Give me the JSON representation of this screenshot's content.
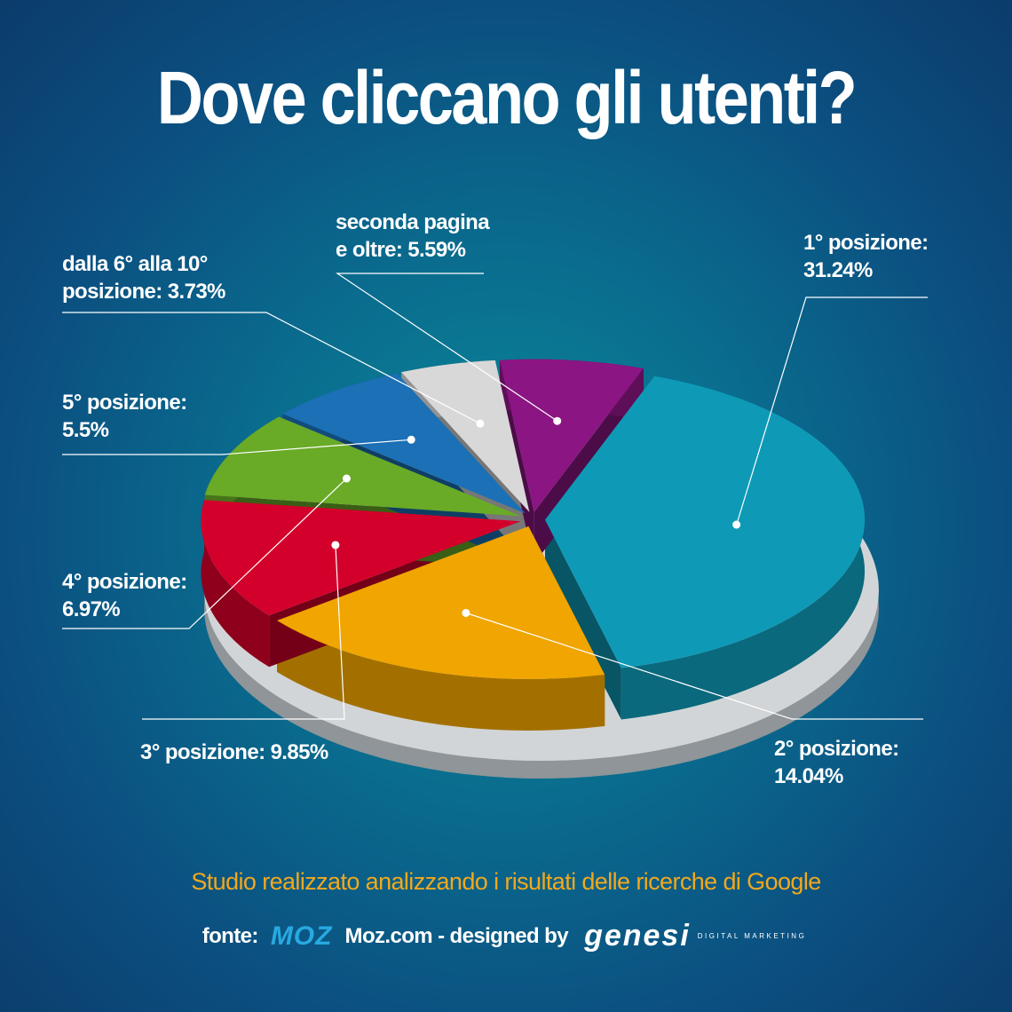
{
  "chart_data": {
    "type": "pie3d",
    "title": "Dove cliccano gli utenti?",
    "categories": [
      "1° posizione:",
      "2° posizione:",
      "3° posizione:",
      "4° posizione:",
      "5° posizione:",
      "dalla 6° alla 10° posizione:",
      "seconda pagina e oltre:"
    ],
    "values": [
      31.24,
      14.04,
      9.85,
      6.97,
      5.5,
      3.73,
      5.59
    ],
    "value_labels": [
      "31.24%",
      "14.04%",
      "9.85%",
      "6.97%",
      "5.5%",
      "3.73%",
      "5.59%"
    ],
    "colors": [
      "#0e9ab7",
      "#f0a500",
      "#d3002b",
      "#69aa27",
      "#1b70b6",
      "#d8d8d8",
      "#8b1582"
    ],
    "subtitle": "Studio realizzato analizzando i risultati delle ricerche di Google",
    "source_label": "fonte:",
    "source_logo": "MOZ",
    "credit": "Moz.com - designed by",
    "designer_logo": "Genesi",
    "designer_tagline": "DIGITAL MARKETING"
  }
}
